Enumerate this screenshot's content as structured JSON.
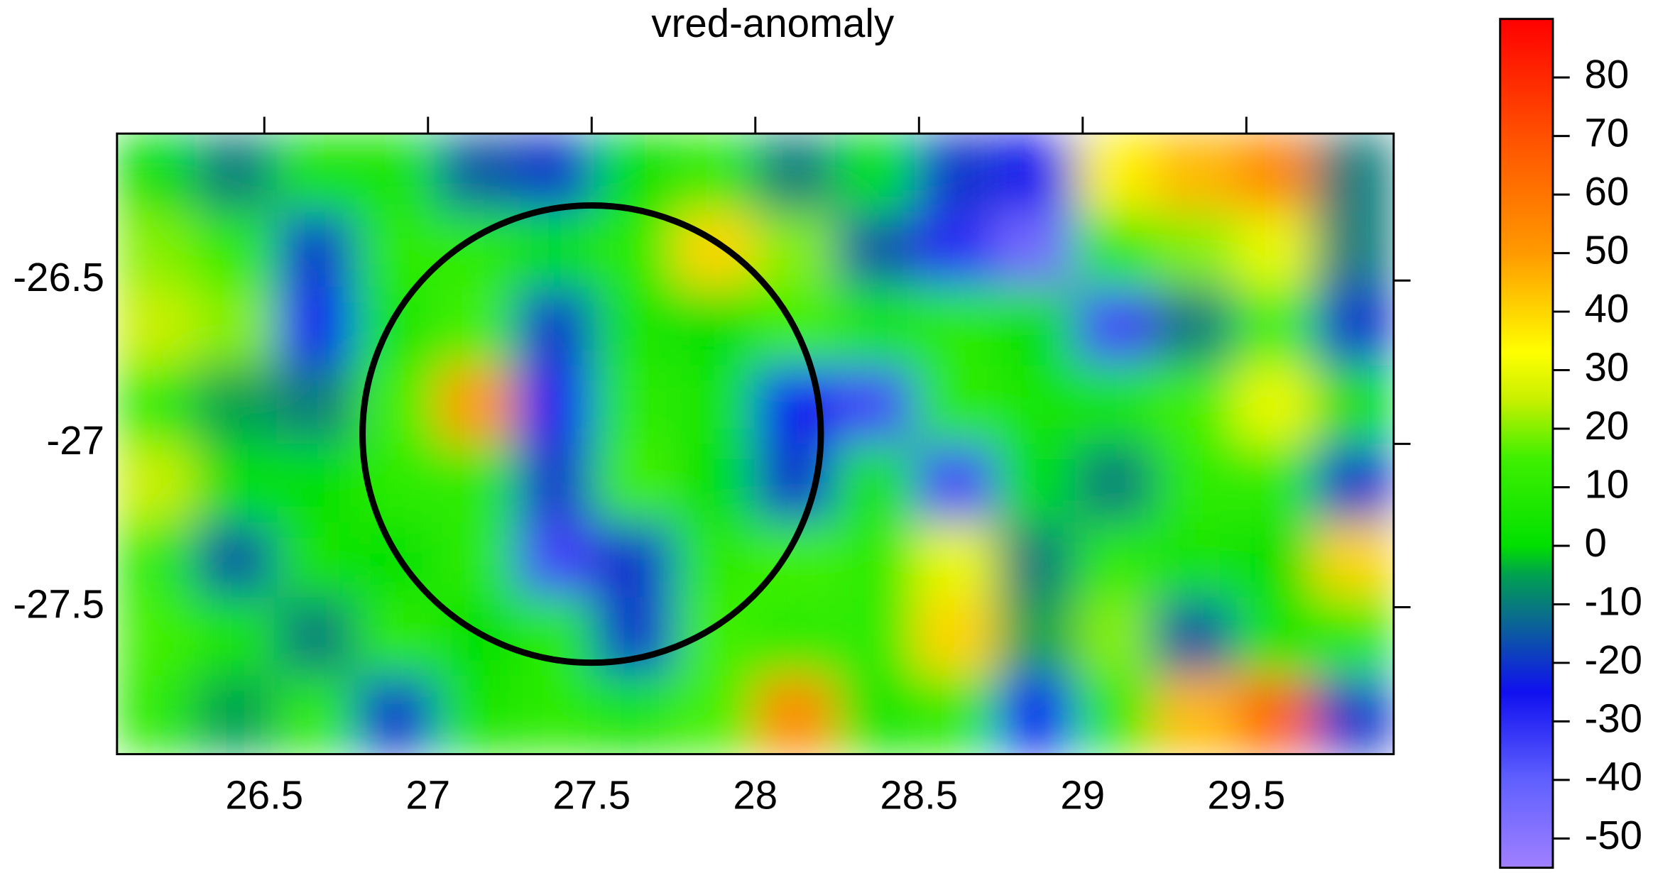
{
  "chart_data": {
    "type": "heatmap",
    "title": "vred-anomaly",
    "x": [
      26.17,
      26.41,
      26.66,
      26.9,
      27.15,
      27.39,
      27.63,
      27.88,
      28.12,
      28.37,
      28.61,
      28.86,
      29.1,
      29.34,
      29.59,
      29.83
    ],
    "y": [
      -26.17,
      -26.41,
      -26.64,
      -26.88,
      -27.12,
      -27.36,
      -27.59,
      -27.83
    ],
    "values": [
      [
        0,
        -10,
        5,
        5,
        -15,
        -20,
        0,
        10,
        -10,
        0,
        -20,
        -25,
        35,
        45,
        55,
        -10
      ],
      [
        20,
        10,
        -20,
        10,
        10,
        0,
        10,
        40,
        20,
        -15,
        -30,
        -45,
        10,
        20,
        30,
        -10
      ],
      [
        25,
        20,
        -25,
        5,
        15,
        -20,
        5,
        0,
        15,
        5,
        10,
        0,
        -35,
        -10,
        15,
        -20
      ],
      [
        10,
        -5,
        -10,
        15,
        50,
        -25,
        10,
        5,
        -25,
        -35,
        10,
        5,
        5,
        15,
        30,
        0
      ],
      [
        25,
        0,
        0,
        10,
        10,
        -20,
        15,
        0,
        -20,
        5,
        -35,
        0,
        -10,
        10,
        10,
        -20
      ],
      [
        10,
        -15,
        5,
        0,
        10,
        -35,
        -20,
        10,
        15,
        10,
        30,
        -10,
        10,
        5,
        0,
        40
      ],
      [
        15,
        5,
        -10,
        10,
        0,
        10,
        -20,
        15,
        10,
        10,
        40,
        -5,
        20,
        -15,
        5,
        10
      ],
      [
        10,
        -5,
        10,
        -20,
        5,
        10,
        5,
        15,
        55,
        5,
        10,
        -25,
        10,
        45,
        65,
        -20
      ]
    ],
    "xlim": [
      26.05,
      29.95
    ],
    "xticks": [
      26.5,
      27,
      27.5,
      28,
      28.5,
      29,
      29.5
    ],
    "ylim": [
      -27.95,
      -26.05
    ],
    "yticks": [
      -26.5,
      -27,
      -27.5
    ],
    "clim": [
      -55,
      90
    ],
    "cticks": [
      80,
      70,
      60,
      50,
      40,
      30,
      20,
      10,
      0,
      -10,
      -20,
      -30,
      -40,
      -50
    ],
    "colorscale": [
      {
        "value": -55,
        "color": "#a080ff"
      },
      {
        "value": -40,
        "color": "#6060ff"
      },
      {
        "value": -25,
        "color": "#1010f0"
      },
      {
        "value": -12,
        "color": "#0a6e8c"
      },
      {
        "value": -5,
        "color": "#00a050"
      },
      {
        "value": 0,
        "color": "#00e000"
      },
      {
        "value": 15,
        "color": "#40f000"
      },
      {
        "value": 25,
        "color": "#c8f000"
      },
      {
        "value": 33,
        "color": "#ffff00"
      },
      {
        "value": 50,
        "color": "#ff9a00"
      },
      {
        "value": 70,
        "color": "#ff5000"
      },
      {
        "value": 90,
        "color": "#ff0000"
      }
    ],
    "circle": {
      "center": [
        27.5,
        -26.97
      ],
      "radius": 0.7,
      "color": "#000000"
    }
  }
}
